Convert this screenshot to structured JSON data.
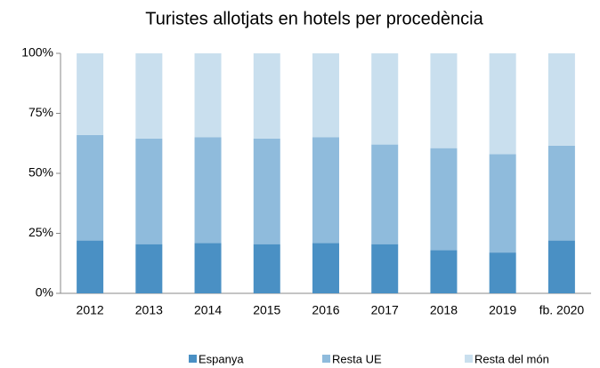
{
  "chart_data": {
    "type": "stacked-bar",
    "title": "Turistes allotjats en hotels per procedència",
    "categories": [
      "2012",
      "2013",
      "2014",
      "2015",
      "2016",
      "2017",
      "2018",
      "2019",
      "fb. 2020"
    ],
    "series": [
      {
        "name": "Espanya",
        "color": "#4a90c4",
        "values": [
          22,
          20.5,
          21,
          20.5,
          21,
          20.5,
          18,
          17,
          22
        ]
      },
      {
        "name": "Resta UE",
        "color": "#8fbbdc",
        "values": [
          44,
          44,
          44,
          44,
          44,
          41.5,
          42.5,
          41,
          39.5
        ]
      },
      {
        "name": "Resta del món",
        "color": "#c9dfee",
        "values": [
          34,
          35.5,
          35,
          35.5,
          35,
          38,
          39.5,
          42,
          38.5
        ]
      }
    ],
    "ylim": [
      0,
      100
    ],
    "yticks": [
      {
        "value": 0,
        "label": "0%"
      },
      {
        "value": 25,
        "label": "25%"
      },
      {
        "value": 50,
        "label": "50%"
      },
      {
        "value": 75,
        "label": "75%"
      },
      {
        "value": 100,
        "label": "100%"
      }
    ],
    "legend": "bottom"
  }
}
